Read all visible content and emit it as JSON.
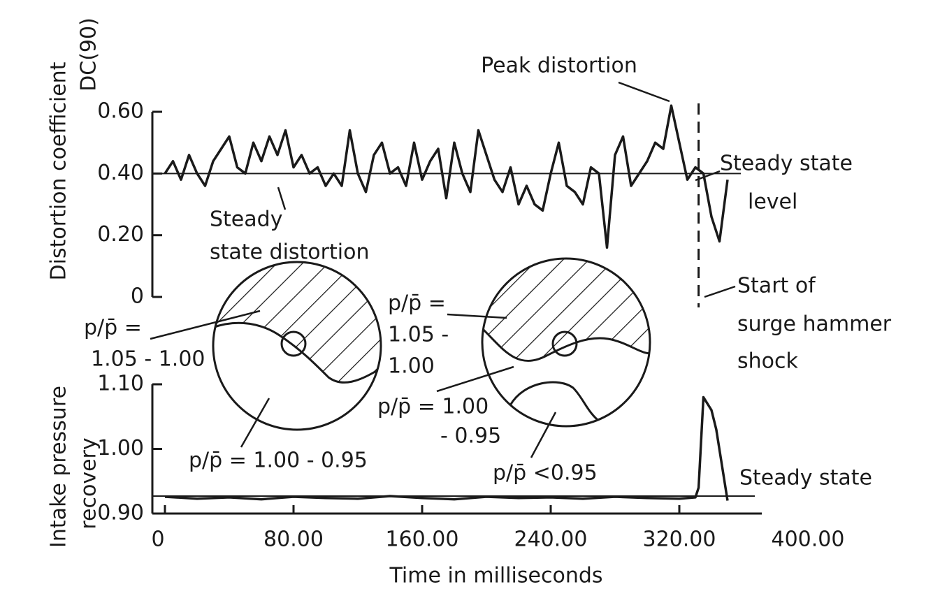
{
  "chart_data": [
    {
      "type": "line",
      "ylabel": [
        "Distortion coefficient",
        "DC(90)"
      ],
      "xlim": [
        0,
        400
      ],
      "ylim": [
        0,
        0.6
      ],
      "yticks": [
        0,
        {
          "value": 0.2,
          "label": "0.20"
        },
        {
          "value": 0.4,
          "label": "0.40"
        },
        {
          "value": 0.6,
          "label": "0.60"
        }
      ],
      "x": [
        0,
        5,
        10,
        15,
        20,
        25,
        30,
        35,
        40,
        45,
        50,
        55,
        60,
        65,
        70,
        75,
        80,
        85,
        90,
        95,
        100,
        105,
        110,
        115,
        120,
        125,
        130,
        135,
        140,
        145,
        150,
        155,
        160,
        165,
        170,
        175,
        180,
        185,
        190,
        195,
        200,
        205,
        210,
        215,
        220,
        225,
        230,
        235,
        240,
        245,
        250,
        255,
        260,
        265,
        270,
        275,
        280,
        285,
        290,
        295,
        300,
        305,
        310,
        315,
        320,
        325,
        330,
        335,
        340,
        345,
        350
      ],
      "values": [
        0.4,
        0.44,
        0.38,
        0.46,
        0.4,
        0.36,
        0.44,
        0.48,
        0.52,
        0.42,
        0.4,
        0.5,
        0.44,
        0.52,
        0.46,
        0.54,
        0.42,
        0.46,
        0.4,
        0.42,
        0.36,
        0.4,
        0.36,
        0.54,
        0.4,
        0.34,
        0.46,
        0.5,
        0.4,
        0.42,
        0.36,
        0.5,
        0.38,
        0.44,
        0.48,
        0.32,
        0.5,
        0.4,
        0.34,
        0.54,
        0.46,
        0.38,
        0.34,
        0.42,
        0.3,
        0.36,
        0.3,
        0.28,
        0.4,
        0.5,
        0.36,
        0.34,
        0.3,
        0.42,
        0.4,
        0.16,
        0.46,
        0.52,
        0.36,
        0.4,
        0.44,
        0.5,
        0.48,
        0.62,
        0.5,
        0.38,
        0.42,
        0.4,
        0.26,
        0.18,
        0.38
      ],
      "color": "#1a1a1a",
      "reference_line": 0.4,
      "event_x": 332,
      "annotations": [
        {
          "lines": [
            "Peak distortion"
          ]
        },
        {
          "lines": [
            "Steady state",
            "level"
          ]
        },
        {
          "lines": [
            "Steady",
            "state distortion"
          ]
        },
        {
          "lines": [
            "Start of",
            "surge hammer",
            "shock"
          ]
        }
      ]
    },
    {
      "type": "line",
      "ylabel": [
        "Intake pressure",
        "recovery"
      ],
      "xlabel": "Time in milliseconds",
      "xlim": [
        0,
        400
      ],
      "ylim": [
        0.9,
        1.1
      ],
      "xticks": [
        0,
        {
          "value": 80,
          "label": "80.00"
        },
        {
          "value": 160,
          "label": "160.00"
        },
        {
          "value": 240,
          "label": "240.00"
        },
        {
          "value": 320,
          "label": "320.00"
        },
        {
          "value": 400,
          "label": "400.00"
        }
      ],
      "yticks": [
        {
          "value": 0.9,
          "label": "0.90"
        },
        {
          "value": 1.0,
          "label": "1.00"
        },
        {
          "value": 1.1,
          "label": "1.10"
        }
      ],
      "x": [
        0,
        20,
        40,
        60,
        80,
        100,
        120,
        140,
        160,
        180,
        200,
        220,
        240,
        260,
        280,
        300,
        320,
        330,
        332,
        335,
        340,
        343,
        350
      ],
      "values": [
        0.926,
        0.923,
        0.925,
        0.922,
        0.926,
        0.924,
        0.923,
        0.927,
        0.924,
        0.922,
        0.926,
        0.924,
        0.925,
        0.923,
        0.926,
        0.924,
        0.923,
        0.925,
        0.94,
        1.08,
        1.06,
        1.03,
        0.92
      ],
      "color": "#1a1a1a",
      "reference_line": 0.927,
      "annotations": [
        {
          "lines": [
            "Steady state"
          ]
        }
      ]
    }
  ],
  "diagrams": [
    {
      "labels": [
        {
          "lines": [
            "p/p̄ =",
            "1.05 - 1.00"
          ]
        },
        {
          "lines": [
            "p/p̄ = 1.00 - 0.95"
          ]
        }
      ]
    },
    {
      "labels": [
        {
          "lines": [
            "p/p̄ =",
            "1.05 -",
            "1.00"
          ]
        },
        {
          "lines": [
            "p/p̄ = 1.00",
            "- 0.95"
          ]
        },
        {
          "lines": [
            "p/p̄ <0.95"
          ]
        }
      ]
    }
  ]
}
